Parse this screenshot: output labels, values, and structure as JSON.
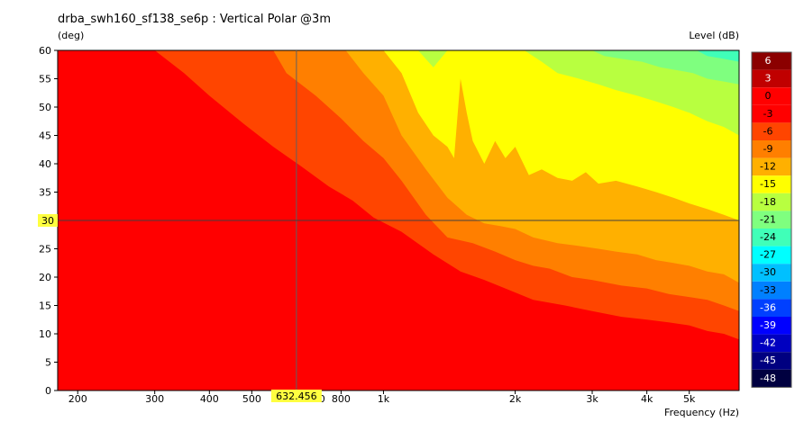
{
  "chart_data": {
    "type": "heatmap",
    "title": "drba_swh160_sf138_se6p : Vertical Polar @3m",
    "ylabel": "(deg)",
    "xlabel": "Frequency  (Hz)",
    "colorbar_label": "Level  (dB)",
    "x_scale": "log",
    "xlim": [
      180,
      6500
    ],
    "ylim": [
      0,
      60
    ],
    "x_ticks": [
      {
        "v": 200,
        "label": "200"
      },
      {
        "v": 300,
        "label": "300"
      },
      {
        "v": 400,
        "label": "400"
      },
      {
        "v": 500,
        "label": "500"
      },
      {
        "v": 700,
        "label": "700"
      },
      {
        "v": 800,
        "label": "800"
      },
      {
        "v": 1000,
        "label": "1k"
      },
      {
        "v": 2000,
        "label": "2k"
      },
      {
        "v": 3000,
        "label": "3k"
      },
      {
        "v": 4000,
        "label": "4k"
      },
      {
        "v": 5000,
        "label": "5k"
      }
    ],
    "y_ticks": [
      0,
      5,
      10,
      15,
      20,
      25,
      30,
      35,
      40,
      45,
      50,
      55,
      60
    ],
    "colorbar": [
      {
        "level": 6,
        "label": "6",
        "color": "#8b0000"
      },
      {
        "level": 3,
        "label": "3",
        "color": "#c00000"
      },
      {
        "level": 0,
        "label": "0",
        "color": "#ff0000"
      },
      {
        "level": -3,
        "label": "-3",
        "color": "#ff0000"
      },
      {
        "level": -6,
        "label": "-6",
        "color": "#ff4500"
      },
      {
        "level": -9,
        "label": "-9",
        "color": "#ff7f00"
      },
      {
        "level": -12,
        "label": "-12",
        "color": "#ffb000"
      },
      {
        "level": -15,
        "label": "-15",
        "color": "#ffff00"
      },
      {
        "level": -18,
        "label": "-18",
        "color": "#b8ff40"
      },
      {
        "level": -21,
        "label": "-21",
        "color": "#7fff7f"
      },
      {
        "level": -24,
        "label": "-24",
        "color": "#40ffb8"
      },
      {
        "level": -27,
        "label": "-27",
        "color": "#00ffff"
      },
      {
        "level": -30,
        "label": "-30",
        "color": "#00c0ff"
      },
      {
        "level": -33,
        "label": "-33",
        "color": "#0080ff"
      },
      {
        "level": -36,
        "label": "-36",
        "color": "#0040ff"
      },
      {
        "level": -39,
        "label": "-39",
        "color": "#0000ff"
      },
      {
        "level": -42,
        "label": "-42",
        "color": "#0000c0"
      },
      {
        "level": -45,
        "label": "-45",
        "color": "#000080"
      },
      {
        "level": -48,
        "label": "-48",
        "color": "#000040"
      }
    ],
    "contours": [
      {
        "level": -6,
        "color": "#ff4500",
        "points": [
          [
            180,
            60
          ],
          [
            300,
            60
          ],
          [
            350,
            56
          ],
          [
            400,
            52
          ],
          [
            480,
            47
          ],
          [
            560,
            43
          ],
          [
            650,
            39.5
          ],
          [
            750,
            36
          ],
          [
            850,
            33.5
          ],
          [
            950,
            30.5
          ],
          [
            1100,
            28
          ],
          [
            1300,
            24
          ],
          [
            1500,
            21
          ],
          [
            1700,
            19.5
          ],
          [
            1900,
            18
          ],
          [
            2200,
            16
          ],
          [
            2600,
            15
          ],
          [
            3000,
            14
          ],
          [
            3500,
            13
          ],
          [
            4000,
            12.5
          ],
          [
            4500,
            12
          ],
          [
            5000,
            11.5
          ],
          [
            5500,
            10.5
          ],
          [
            6000,
            10
          ],
          [
            6500,
            9
          ]
        ]
      },
      {
        "level": -9,
        "color": "#ff7f00",
        "points": [
          [
            180,
            60
          ],
          [
            560,
            60
          ],
          [
            600,
            56
          ],
          [
            700,
            52
          ],
          [
            800,
            48
          ],
          [
            900,
            44
          ],
          [
            1000,
            41
          ],
          [
            1100,
            37
          ],
          [
            1250,
            31
          ],
          [
            1400,
            27
          ],
          [
            1600,
            26
          ],
          [
            1800,
            24.5
          ],
          [
            2000,
            23
          ],
          [
            2200,
            22
          ],
          [
            2400,
            21.5
          ],
          [
            2700,
            20
          ],
          [
            3000,
            19.5
          ],
          [
            3500,
            18.5
          ],
          [
            4000,
            18
          ],
          [
            4500,
            17
          ],
          [
            5000,
            16.5
          ],
          [
            5500,
            16
          ],
          [
            6000,
            15
          ],
          [
            6500,
            14
          ]
        ]
      },
      {
        "level": -12,
        "color": "#ffb000",
        "points": [
          [
            180,
            60
          ],
          [
            820,
            60
          ],
          [
            900,
            56
          ],
          [
            1000,
            52
          ],
          [
            1100,
            45
          ],
          [
            1250,
            39
          ],
          [
            1400,
            34
          ],
          [
            1550,
            31
          ],
          [
            1700,
            29.5
          ],
          [
            1850,
            29
          ],
          [
            2000,
            28.5
          ],
          [
            2200,
            27
          ],
          [
            2500,
            26
          ],
          [
            2800,
            25.5
          ],
          [
            3100,
            25
          ],
          [
            3400,
            24.5
          ],
          [
            3800,
            24
          ],
          [
            4200,
            23
          ],
          [
            4600,
            22.5
          ],
          [
            5000,
            22
          ],
          [
            5500,
            21
          ],
          [
            6000,
            20.5
          ],
          [
            6500,
            19
          ]
        ]
      },
      {
        "level": -15,
        "color": "#ffff00",
        "points": [
          [
            180,
            60
          ],
          [
            1000,
            60
          ],
          [
            1100,
            56
          ],
          [
            1200,
            49
          ],
          [
            1300,
            45
          ],
          [
            1400,
            43
          ],
          [
            1450,
            41
          ],
          [
            1500,
            55
          ],
          [
            1550,
            49
          ],
          [
            1600,
            44
          ],
          [
            1700,
            40
          ],
          [
            1800,
            44
          ],
          [
            1900,
            41
          ],
          [
            2000,
            43
          ],
          [
            2150,
            38
          ],
          [
            2300,
            39
          ],
          [
            2500,
            37.5
          ],
          [
            2700,
            37
          ],
          [
            2900,
            38.5
          ],
          [
            3100,
            36.5
          ],
          [
            3400,
            37
          ],
          [
            3800,
            36
          ],
          [
            4200,
            35
          ],
          [
            4600,
            34
          ],
          [
            5000,
            33
          ],
          [
            5500,
            32
          ],
          [
            6000,
            31
          ],
          [
            6500,
            30
          ]
        ]
      },
      {
        "level": -18,
        "color": "#b8ff40",
        "points": [
          [
            180,
            60
          ],
          [
            1200,
            60
          ],
          [
            1300,
            57
          ],
          [
            1400,
            60
          ],
          [
            2100,
            60
          ],
          [
            2300,
            58
          ],
          [
            2500,
            56
          ],
          [
            2800,
            55
          ],
          [
            3100,
            54
          ],
          [
            3400,
            53
          ],
          [
            3800,
            52
          ],
          [
            4200,
            51
          ],
          [
            4600,
            50
          ],
          [
            5000,
            49
          ],
          [
            5500,
            47.5
          ],
          [
            6000,
            46.5
          ],
          [
            6500,
            45
          ]
        ]
      },
      {
        "level": -21,
        "color": "#7fff7f",
        "points": [
          [
            180,
            60
          ],
          [
            3000,
            60
          ],
          [
            3200,
            59
          ],
          [
            3500,
            58.5
          ],
          [
            3900,
            58
          ],
          [
            4300,
            57
          ],
          [
            4700,
            56.5
          ],
          [
            5100,
            56
          ],
          [
            5500,
            55
          ],
          [
            6000,
            54.5
          ],
          [
            6500,
            54
          ]
        ]
      },
      {
        "level": -24,
        "color": "#40ffb8",
        "points": [
          [
            180,
            60
          ],
          [
            5200,
            60
          ],
          [
            5500,
            59
          ],
          [
            6000,
            58.5
          ],
          [
            6500,
            58
          ]
        ]
      }
    ],
    "cursor": {
      "frequency_label": "632.456",
      "angle_label": "30",
      "frequency": 632.456,
      "angle": 30
    }
  }
}
